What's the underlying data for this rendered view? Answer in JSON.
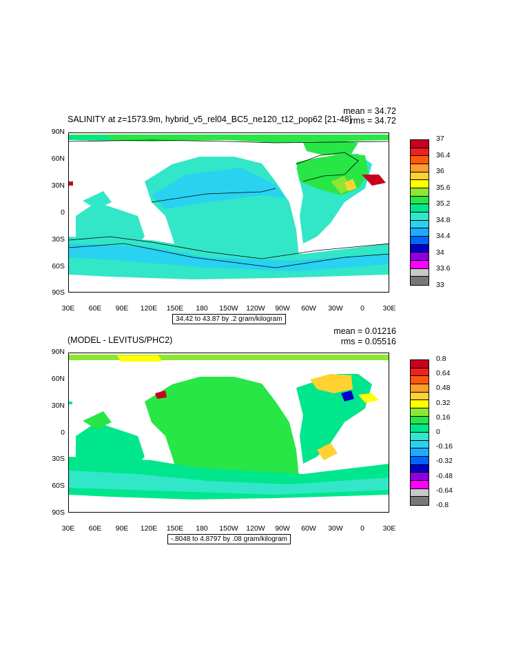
{
  "panel1": {
    "title": "SALINITY at z=1573.9m, hybrid_v5_rel04_BC5_ne120_t12_pop62 [21-48]",
    "mean": "mean = 34.72",
    "rms": "rms = 34.72",
    "range": "34.42 to 43.87 by .2 gram/kilogram",
    "lat_labels": [
      "90N",
      "60N",
      "30N",
      "0",
      "30S",
      "60S",
      "90S"
    ],
    "lon_labels": [
      "30E",
      "60E",
      "90E",
      "120E",
      "150E",
      "180",
      "150W",
      "120W",
      "90W",
      "60W",
      "30W",
      "0",
      "30E"
    ],
    "colorbar": {
      "labels": [
        "37",
        "36.4",
        "36",
        "35.6",
        "35.2",
        "34.8",
        "34.4",
        "34",
        "33.6",
        "33"
      ],
      "colors": [
        "#c8001e",
        "#ee2020",
        "#ff5a0a",
        "#ff9b30",
        "#ffd232",
        "#ffff00",
        "#8de632",
        "#28e646",
        "#00e68c",
        "#32e6c8",
        "#28d2f0",
        "#1eaaff",
        "#0064ff",
        "#0000c8",
        "#8c00dc",
        "#ff00ff",
        "#c8c8c8",
        "#787878"
      ]
    }
  },
  "panel2": {
    "title": "(MODEL - LEVITUS/PHC2)",
    "mean": "mean = 0.01216",
    "rms": "rms = 0.05516",
    "range": "-.8048 to 4.8797 by .08 gram/kilogram",
    "lat_labels": [
      "90N",
      "60N",
      "30N",
      "0",
      "30S",
      "60S",
      "90S"
    ],
    "lon_labels": [
      "30E",
      "60E",
      "90E",
      "120E",
      "150E",
      "180",
      "150W",
      "120W",
      "90W",
      "60W",
      "30W",
      "0",
      "30E"
    ],
    "colorbar": {
      "labels": [
        "0.8",
        "0.64",
        "0.48",
        "0.32",
        "0.16",
        "0",
        "-0.16",
        "-0.32",
        "-0.48",
        "-0.64",
        "-0.8"
      ],
      "colors": [
        "#c8001e",
        "#ee2020",
        "#ff5a0a",
        "#ff9b30",
        "#ffd232",
        "#ffff00",
        "#8de632",
        "#28e646",
        "#00e68c",
        "#32e6c8",
        "#28d2f0",
        "#1eaaff",
        "#0064ff",
        "#0000c8",
        "#8c00dc",
        "#ff00ff",
        "#c8c8c8",
        "#787878"
      ]
    }
  }
}
